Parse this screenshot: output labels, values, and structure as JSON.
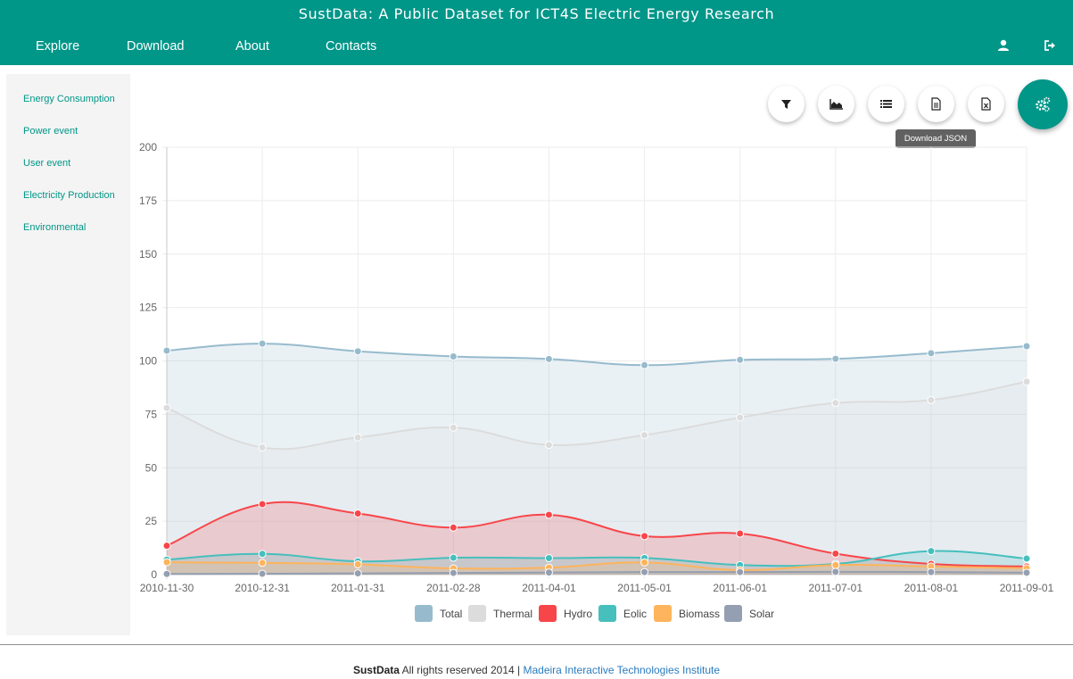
{
  "header": {
    "title": "SustData: A Public Dataset for ICT4S Electric Energy Research",
    "nav": [
      "Explore",
      "Download",
      "About",
      "Contacts"
    ],
    "user_icon": "user-icon",
    "logout_icon": "sign-out-icon"
  },
  "sidebar": {
    "items": [
      "Energy Consumption",
      "Power event",
      "User event",
      "Electricity Production",
      "Environmental"
    ]
  },
  "toolbar": {
    "buttons": [
      "filter-icon",
      "area-chart-icon",
      "list-icon",
      "file-text-icon",
      "file-excel-icon"
    ],
    "main_button": "gears-icon",
    "tooltip": "Download JSON"
  },
  "colors": {
    "brand": "#009688",
    "Total": "#97bbcd",
    "Thermal": "#dcdcdc",
    "Hydro": "#f7464a",
    "Eolic": "#46bfbd",
    "Biomass": "#fdb45c",
    "Solar": "#949fb1"
  },
  "chart_data": {
    "type": "area",
    "title": "",
    "xlabel": "",
    "ylabel": "",
    "ylim": [
      0,
      200
    ],
    "yticks": [
      0,
      25,
      50,
      75,
      100,
      125,
      150,
      175,
      200
    ],
    "grid": true,
    "legend": "bottom",
    "categories": [
      "2010-11-30",
      "2010-12-31",
      "2011-01-31",
      "2011-02-28",
      "2011-04-01",
      "2011-05-01",
      "2011-06-01",
      "2011-07-01",
      "2011-08-01",
      "2011-09-01"
    ],
    "series": [
      {
        "name": "Total",
        "values": [
          104.8,
          108.1,
          104.5,
          102.1,
          100.9,
          98.0,
          100.5,
          101.0,
          103.6,
          106.9
        ]
      },
      {
        "name": "Thermal",
        "values": [
          78.0,
          59.5,
          64.2,
          68.8,
          60.7,
          65.3,
          73.5,
          80.3,
          81.7,
          90.3
        ]
      },
      {
        "name": "Hydro",
        "values": [
          13.5,
          33.0,
          28.6,
          22.0,
          28.0,
          18.0,
          19.2,
          9.8,
          5.0,
          3.8
        ]
      },
      {
        "name": "Eolic",
        "values": [
          7.0,
          9.7,
          6.2,
          7.9,
          7.7,
          7.8,
          4.5,
          5.0,
          11.0,
          7.5
        ]
      },
      {
        "name": "Biomass",
        "values": [
          5.8,
          5.5,
          4.8,
          2.9,
          3.3,
          5.7,
          2.1,
          4.5,
          3.8,
          3.0
        ]
      },
      {
        "name": "Solar",
        "values": [
          0.3,
          0.4,
          0.6,
          0.8,
          1.0,
          1.2,
          1.2,
          1.3,
          1.2,
          0.9
        ]
      }
    ]
  },
  "footer": {
    "brand": "SustData",
    "rights": " All rights reserved 2014 | ",
    "link": "Madeira Interactive Technologies Institute"
  }
}
